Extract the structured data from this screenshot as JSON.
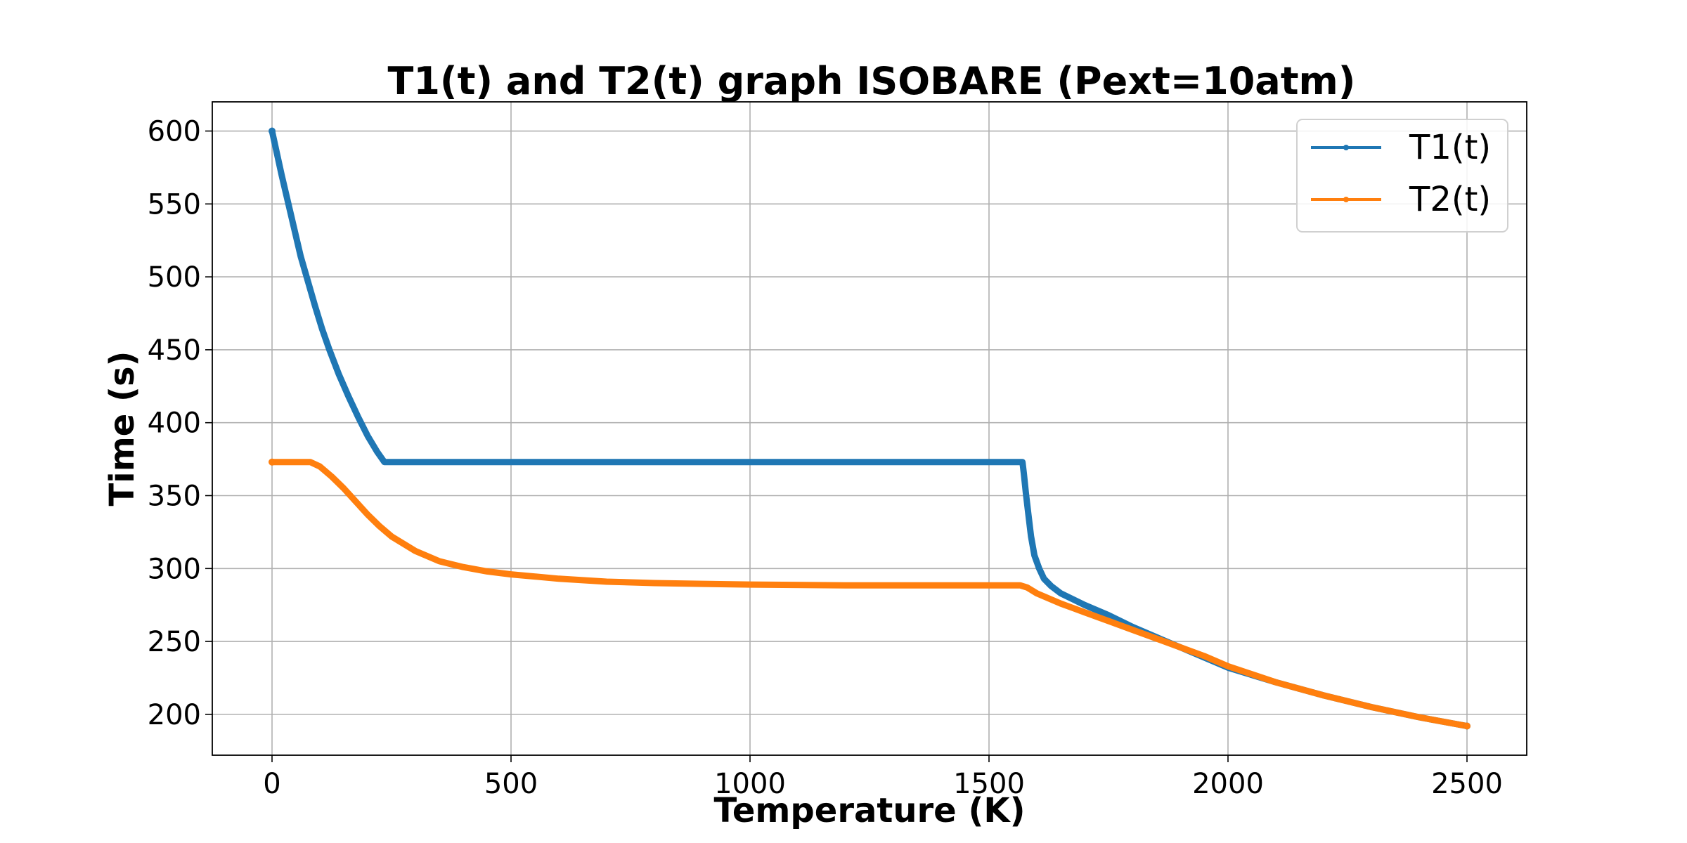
{
  "chart_data": {
    "type": "line",
    "title": "T1(t) and T2(t) graph ISOBARE (Pext=10atm)",
    "xlabel": "Temperature (K)",
    "ylabel": "Time (s)",
    "xlim": [
      -125,
      2625
    ],
    "ylim": [
      172,
      620
    ],
    "xticks": [
      0,
      500,
      1000,
      1500,
      2000,
      2500
    ],
    "yticks": [
      200,
      250,
      300,
      350,
      400,
      450,
      500,
      550,
      600
    ],
    "grid": true,
    "legend_position": "top-right",
    "series": [
      {
        "name": "T1(t)",
        "color": "#1f77b4",
        "points": [
          [
            0,
            600
          ],
          [
            10,
            585
          ],
          [
            20,
            570
          ],
          [
            30,
            556
          ],
          [
            40,
            542
          ],
          [
            50,
            528
          ],
          [
            60,
            514
          ],
          [
            75,
            497
          ],
          [
            90,
            480
          ],
          [
            105,
            464
          ],
          [
            120,
            450
          ],
          [
            140,
            433
          ],
          [
            160,
            418
          ],
          [
            180,
            404
          ],
          [
            200,
            391
          ],
          [
            220,
            380
          ],
          [
            235,
            373
          ],
          [
            400,
            373
          ],
          [
            600,
            373
          ],
          [
            800,
            373
          ],
          [
            1000,
            373
          ],
          [
            1200,
            373
          ],
          [
            1400,
            373
          ],
          [
            1570,
            373
          ],
          [
            1573,
            365
          ],
          [
            1577,
            352
          ],
          [
            1582,
            338
          ],
          [
            1588,
            322
          ],
          [
            1595,
            309
          ],
          [
            1605,
            300
          ],
          [
            1615,
            293
          ],
          [
            1630,
            288
          ],
          [
            1650,
            283
          ],
          [
            1700,
            275
          ],
          [
            1750,
            268
          ],
          [
            1800,
            260
          ],
          [
            1850,
            253
          ],
          [
            1900,
            246
          ],
          [
            1950,
            239
          ],
          [
            2000,
            232
          ],
          [
            2100,
            222
          ],
          [
            2200,
            213
          ],
          [
            2300,
            205
          ],
          [
            2400,
            198
          ],
          [
            2500,
            192
          ]
        ]
      },
      {
        "name": "T2(t)",
        "color": "#ff7f0e",
        "points": [
          [
            0,
            373
          ],
          [
            40,
            373
          ],
          [
            80,
            373
          ],
          [
            100,
            370
          ],
          [
            125,
            363
          ],
          [
            150,
            355
          ],
          [
            175,
            346
          ],
          [
            200,
            337
          ],
          [
            225,
            329
          ],
          [
            250,
            322
          ],
          [
            300,
            312
          ],
          [
            350,
            305
          ],
          [
            400,
            301
          ],
          [
            450,
            298
          ],
          [
            500,
            296
          ],
          [
            600,
            293
          ],
          [
            700,
            291
          ],
          [
            800,
            290
          ],
          [
            900,
            289.5
          ],
          [
            1000,
            289
          ],
          [
            1200,
            288.5
          ],
          [
            1400,
            288.5
          ],
          [
            1565,
            288.5
          ],
          [
            1580,
            287
          ],
          [
            1600,
            283
          ],
          [
            1650,
            276
          ],
          [
            1700,
            270
          ],
          [
            1750,
            264
          ],
          [
            1800,
            258
          ],
          [
            1850,
            252
          ],
          [
            1900,
            246
          ],
          [
            1950,
            240
          ],
          [
            2000,
            233
          ],
          [
            2100,
            222
          ],
          [
            2200,
            213
          ],
          [
            2300,
            205
          ],
          [
            2400,
            198
          ],
          [
            2500,
            192
          ]
        ]
      }
    ]
  }
}
